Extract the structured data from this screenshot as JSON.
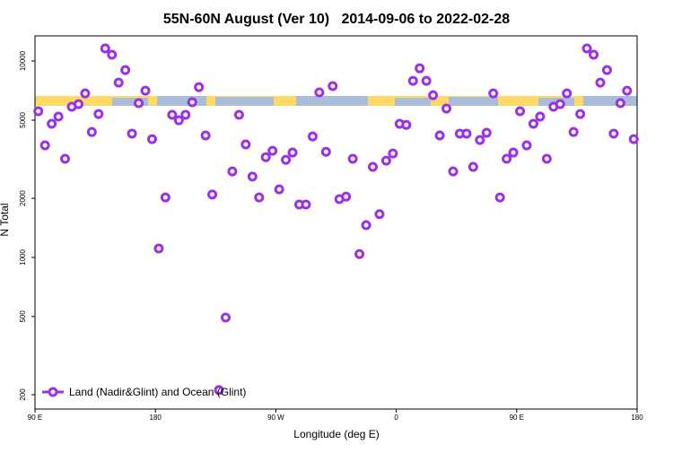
{
  "chart_data": {
    "type": "scatter",
    "title": "55N-60N August (Ver 10)   2014-09-06 to 2022-02-28",
    "x_label": "Longitude (deg E)",
    "y_label": "N Total",
    "log_y": true,
    "legend_position": "bottomleft",
    "xlim": [
      90,
      540
    ],
    "ylim": [
      169,
      13430
    ],
    "xticks": [
      {
        "value": 90,
        "label": "90 E"
      },
      {
        "value": 180,
        "label": "180"
      },
      {
        "value": 270,
        "label": "90 W"
      },
      {
        "value": 360,
        "label": "0"
      },
      {
        "value": 450,
        "label": "90 E"
      },
      {
        "value": 540,
        "label": "180"
      }
    ],
    "yticks": [
      200,
      500,
      1000,
      2000,
      5000,
      10000
    ],
    "series": [
      {
        "name": "Land (Nadir&Glint) and Ocean (Glint)",
        "color": "#9b30e6",
        "x": [
          92.5,
          97.5,
          102.5,
          107.5,
          112.5,
          117.5,
          122.5,
          127.5,
          132.5,
          137.5,
          142.5,
          147.5,
          152.5,
          157.5,
          162.5,
          167.5,
          172.5,
          177.5,
          182.5,
          187.5,
          192.5,
          197.5,
          202.5,
          207.5,
          212.5,
          217.5,
          222.5,
          227.5,
          232.5,
          237.5,
          242.5,
          247.5,
          252.5,
          257.5,
          262.5,
          267.5,
          272.5,
          277.5,
          282.5,
          287.5,
          292.5,
          297.5,
          302.5,
          307.5,
          312.5,
          317.5,
          322.5,
          327.5,
          332.5,
          337.5,
          342.5,
          347.5,
          352.5,
          357.5,
          362.5,
          367.5,
          372.5,
          377.5,
          382.5,
          387.5,
          392.5,
          397.5,
          402.5,
          407.5,
          412.5,
          417.5,
          422.5,
          427.5,
          432.5,
          437.5,
          442.5,
          447.5,
          452.5,
          457.5,
          462.5,
          467.5,
          472.5,
          477.5,
          482.5,
          487.5,
          492.5,
          497.5,
          502.5,
          507.5,
          512.5,
          517.5,
          522.5,
          527.5,
          532.5,
          537.5
        ],
        "values": [
          5550,
          3720,
          4790,
          5210,
          3180,
          5850,
          6030,
          6840,
          4350,
          5370,
          11590,
          10770,
          7760,
          8990,
          4270,
          6100,
          7060,
          4000,
          1110,
          2020,
          5320,
          4990,
          5320,
          6170,
          7360,
          4180,
          2090,
          211,
          494,
          2740,
          5320,
          3760,
          2580,
          2020,
          3240,
          3490,
          2220,
          3140,
          3420,
          1860,
          1860,
          4130,
          6920,
          3450,
          7450,
          1980,
          2040,
          3180,
          1040,
          1460,
          2890,
          1660,
          3110,
          3380,
          4790,
          4730,
          7930,
          9180,
          7930,
          6700,
          4180,
          5730,
          2740,
          4270,
          4270,
          2890,
          3960,
          4310,
          6840,
          2020,
          3180,
          3420,
          5550,
          3720,
          4790,
          5210,
          3180,
          5850,
          6030,
          6840,
          4350,
          5370,
          11590,
          10770,
          7760,
          8990,
          4270,
          6100,
          7060,
          4000
        ]
      }
    ]
  }
}
